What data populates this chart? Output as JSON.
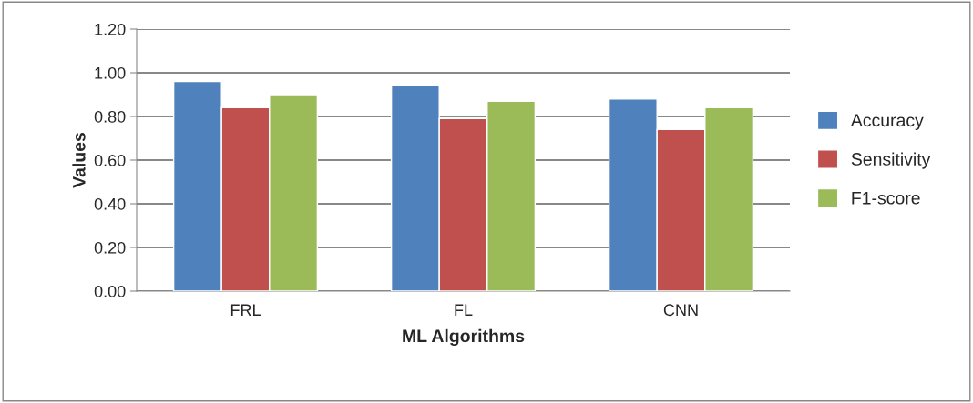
{
  "chart_data": {
    "type": "bar",
    "xlabel": "ML Algorithms",
    "ylabel": "Values",
    "categories": [
      "FRL",
      "FL",
      "CNN"
    ],
    "series": [
      {
        "name": "Accuracy",
        "color": "#4f81bd",
        "values": [
          0.96,
          0.94,
          0.88
        ]
      },
      {
        "name": "Sensitivity",
        "color": "#c0504d",
        "values": [
          0.84,
          0.79,
          0.74
        ]
      },
      {
        "name": "F1-score",
        "color": "#9bbb59",
        "values": [
          0.9,
          0.87,
          0.84
        ]
      }
    ],
    "ylim": [
      0,
      1.2
    ],
    "yticks": [
      {
        "value": 0,
        "label": "0.00"
      },
      {
        "value": 0.2,
        "label": "0.20"
      },
      {
        "value": 0.4,
        "label": "0.40"
      },
      {
        "value": 0.6,
        "label": "0.60"
      },
      {
        "value": 0.8,
        "label": "0.80"
      },
      {
        "value": 1.0,
        "label": "1.00"
      },
      {
        "value": 1.2,
        "label": "1.20"
      }
    ],
    "grid": "y",
    "legend": "right"
  }
}
